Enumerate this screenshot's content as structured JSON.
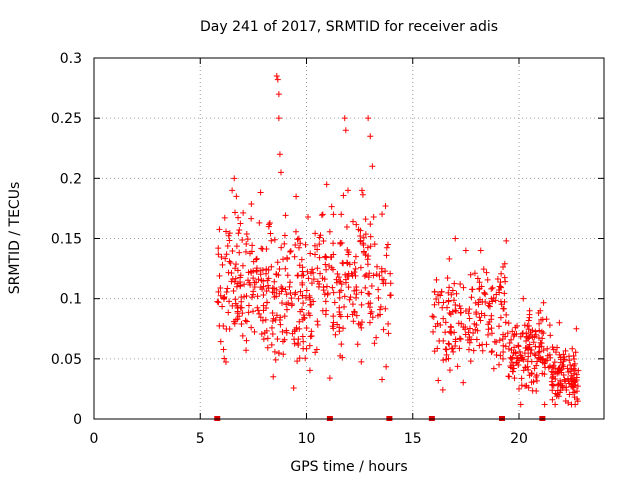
{
  "chart_data": {
    "type": "scatter",
    "title": "Day 241 of 2017, SRMTID for receiver adis",
    "xlabel": "GPS time / hours",
    "ylabel": "SRMTID / TECUs",
    "xlim": [
      0,
      24
    ],
    "ylim": [
      0,
      0.3
    ],
    "xticks": [
      0,
      5,
      10,
      15,
      20
    ],
    "xtick_labels": [
      "0",
      "5",
      "10",
      "15",
      "20"
    ],
    "yticks": [
      0,
      0.05,
      0.1,
      0.15,
      0.2,
      0.25,
      0.3
    ],
    "ytick_labels": [
      "0",
      "0.05",
      "0.1",
      "0.15",
      "0.2",
      "0.25",
      "0.3"
    ],
    "grid": true,
    "marker": "+",
    "color": "#ff0000",
    "zero_values_x": [
      5.8,
      11.1,
      13.9,
      15.9,
      19.2,
      21.1
    ],
    "segments": [
      {
        "x_start": 5.8,
        "x_end": 8.0,
        "y_center": 0.11,
        "y_spread": 0.045,
        "n": 150,
        "peaks": [
          [
            6.5,
            0.19
          ],
          [
            6.6,
            0.2
          ],
          [
            6.7,
            0.185
          ]
        ]
      },
      {
        "x_start": 8.0,
        "x_end": 10.5,
        "y_center": 0.1,
        "y_spread": 0.05,
        "n": 170,
        "peaks": [
          [
            8.6,
            0.285
          ],
          [
            8.65,
            0.282
          ],
          [
            8.7,
            0.27
          ],
          [
            8.7,
            0.25
          ],
          [
            8.75,
            0.22
          ],
          [
            8.8,
            0.205
          ]
        ]
      },
      {
        "x_start": 10.5,
        "x_end": 14.0,
        "y_center": 0.12,
        "y_spread": 0.05,
        "n": 200,
        "peaks": [
          [
            11.8,
            0.25
          ],
          [
            11.85,
            0.24
          ],
          [
            12.9,
            0.25
          ],
          [
            13.0,
            0.235
          ],
          [
            13.1,
            0.21
          ],
          [
            11.1,
            0.034
          ],
          [
            10.95,
            0.195
          ]
        ]
      },
      {
        "x_start": 15.9,
        "x_end": 19.5,
        "y_center": 0.085,
        "y_spread": 0.035,
        "n": 190,
        "peaks": [
          [
            16.2,
            0.032
          ],
          [
            17.0,
            0.15
          ],
          [
            17.5,
            0.14
          ],
          [
            19.4,
            0.148
          ],
          [
            18.2,
            0.14
          ]
        ]
      },
      {
        "x_start": 19.5,
        "x_end": 21.5,
        "y_center": 0.055,
        "y_spread": 0.025,
        "n": 150,
        "peaks": [
          [
            20.2,
            0.1
          ],
          [
            20.5,
            0.09
          ],
          [
            21.0,
            0.09
          ],
          [
            20.0,
            0.025
          ]
        ]
      },
      {
        "x_start": 21.5,
        "x_end": 22.8,
        "y_center": 0.035,
        "y_spread": 0.018,
        "n": 110,
        "peaks": [
          [
            21.9,
            0.08
          ],
          [
            22.7,
            0.075
          ],
          [
            21.7,
            0.012
          ],
          [
            22.2,
            0.015
          ]
        ]
      }
    ]
  }
}
